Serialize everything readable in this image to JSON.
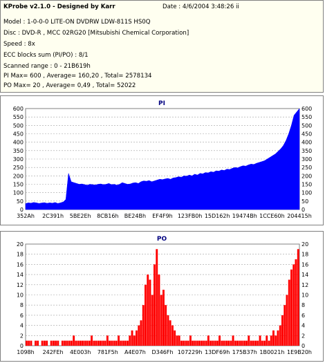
{
  "info": {
    "title": "KProbe v2.1.0 - Designed by Karr",
    "date": "Date : 4/6/2004 3:48:26 ii",
    "lines": [
      "Model : 1-0-0-0 LITE-ON DVDRW LDW-811S   HS0Q",
      "Disc : DVD-R , MCC 02RG20  [Mitsubishi Chemical Corporation]",
      "Speed : 8x",
      "ECC blocks sum (PI/PO) : 8/1",
      "Scanned range : 0 - 21B619h",
      "PI Max= 600 , Average= 160,20 , Total= 2578134",
      "PO Max= 20 , Average= 0,49 , Total= 52022"
    ]
  },
  "chart_data": [
    {
      "type": "area",
      "title": "PI",
      "color": "#0000ff",
      "ylim": [
        0,
        600
      ],
      "yticks": [
        0,
        50,
        100,
        150,
        200,
        250,
        300,
        350,
        400,
        450,
        500,
        550,
        600
      ],
      "xticks": [
        "352Ah",
        "2C391h",
        "5BE2Eh",
        "8CB16h",
        "BE24Bh",
        "EF4F9h",
        "123FB0h",
        "15D162h",
        "19474Bh",
        "1CCE60h",
        "204415h"
      ],
      "grid": true,
      "series": [
        {
          "values": [
            35,
            40,
            38,
            42,
            40,
            36,
            39,
            41,
            37,
            40,
            38,
            42,
            36,
            40,
            45,
            60,
            215,
            165,
            160,
            155,
            150,
            152,
            148,
            145,
            150,
            148,
            146,
            150,
            152,
            148,
            150,
            155,
            148,
            150,
            145,
            150,
            160,
            155,
            150,
            152,
            158,
            160,
            155,
            165,
            170,
            168,
            172,
            165,
            170,
            175,
            180,
            178,
            182,
            185,
            180,
            188,
            190,
            195,
            192,
            200,
            198,
            205,
            200,
            210,
            205,
            215,
            212,
            220,
            218,
            225,
            222,
            230,
            228,
            235,
            232,
            240,
            238,
            245,
            250,
            248,
            255,
            260,
            258,
            265,
            270,
            268,
            275,
            280,
            285,
            290,
            300,
            310,
            320,
            330,
            345,
            360,
            380,
            410,
            450,
            500,
            560,
            580,
            600
          ]
        }
      ]
    },
    {
      "type": "bar",
      "title": "PO",
      "color": "#ff0000",
      "ylim": [
        0,
        20
      ],
      "yticks": [
        0,
        2,
        4,
        6,
        8,
        10,
        12,
        14,
        16,
        18,
        20
      ],
      "xticks": [
        "1098h",
        "242FEh",
        "4E003h",
        "781F5h",
        "A4E07h",
        "D346Fh",
        "107229h",
        "13DF69h",
        "175B37h",
        "1B0021h",
        "1E9B20h"
      ],
      "grid": true,
      "series": [
        {
          "values": [
            1,
            1,
            1,
            0,
            1,
            1,
            0,
            1,
            1,
            1,
            0,
            1,
            1,
            1,
            1,
            0,
            1,
            1,
            1,
            1,
            1,
            2,
            1,
            1,
            1,
            1,
            1,
            1,
            1,
            2,
            1,
            1,
            1,
            1,
            1,
            1,
            2,
            1,
            1,
            1,
            1,
            2,
            1,
            1,
            1,
            1,
            2,
            3,
            2,
            3,
            4,
            5,
            8,
            12,
            14,
            13,
            10,
            16,
            19,
            14,
            10,
            11,
            8,
            6,
            5,
            4,
            3,
            2,
            2,
            1,
            1,
            1,
            1,
            2,
            1,
            1,
            1,
            1,
            1,
            1,
            1,
            2,
            1,
            1,
            1,
            1,
            2,
            1,
            1,
            1,
            1,
            1,
            2,
            1,
            1,
            1,
            1,
            1,
            1,
            2,
            1,
            1,
            1,
            1,
            2,
            1,
            1,
            2,
            1,
            2,
            3,
            2,
            3,
            4,
            6,
            8,
            10,
            13,
            15,
            16,
            17,
            19
          ]
        }
      ]
    }
  ]
}
